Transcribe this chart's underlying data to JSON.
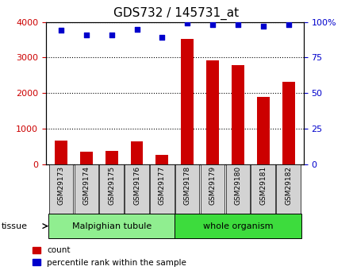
{
  "title": "GDS732 / 145731_at",
  "categories": [
    "GSM29173",
    "GSM29174",
    "GSM29175",
    "GSM29176",
    "GSM29177",
    "GSM29178",
    "GSM29179",
    "GSM29180",
    "GSM29181",
    "GSM29182"
  ],
  "counts": [
    670,
    350,
    370,
    640,
    270,
    3530,
    2930,
    2780,
    1890,
    2310
  ],
  "percentiles": [
    94,
    91,
    91,
    95,
    89,
    99,
    98,
    98,
    97,
    98
  ],
  "tissue_groups": [
    {
      "label": "Malpighian tubule",
      "start": 0,
      "end": 5,
      "color": "#90ee90"
    },
    {
      "label": "whole organism",
      "start": 5,
      "end": 10,
      "color": "#3ddc3d"
    }
  ],
  "bar_color": "#cc0000",
  "dot_color": "#0000cc",
  "left_ylim": [
    0,
    4000
  ],
  "right_ylim": [
    0,
    100
  ],
  "left_yticks": [
    0,
    1000,
    2000,
    3000,
    4000
  ],
  "right_yticks": [
    0,
    25,
    50,
    75,
    100
  ],
  "left_ycolor": "#cc0000",
  "right_ycolor": "#0000cc",
  "grid_color": "#000000",
  "bg_color": "#ffffff",
  "tick_bg_color": "#d3d3d3"
}
